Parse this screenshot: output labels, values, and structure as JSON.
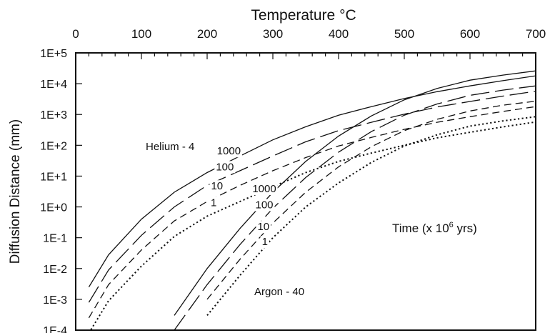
{
  "chart_data": {
    "type": "line",
    "title": "",
    "xlabel": "Temperature °C",
    "ylabel": "Diffusion Distance (mm)",
    "xlim": [
      0,
      700
    ],
    "ylim_log10": [
      -4,
      5
    ],
    "x_scale": "linear",
    "y_scale": "log",
    "x_position": "top",
    "grid": false,
    "x_ticks": [
      "0",
      "100",
      "200",
      "300",
      "400",
      "500",
      "600",
      "700"
    ],
    "y_ticks": [
      "1E+5",
      "1E+4",
      "1E+3",
      "1E+2",
      "1E+1",
      "1E+0",
      "1E-1",
      "1E-2",
      "1E-3",
      "1E-4"
    ],
    "annotations": {
      "helium": "Helium - 4",
      "argon": "Argon - 40",
      "time": "Time (x 10",
      "time_exp": "6",
      "time_unit": " yrs)"
    },
    "series": [
      {
        "group": "He",
        "label": "1000",
        "style": "solid",
        "points": [
          [
            20,
            0.0025
          ],
          [
            50,
            0.028
          ],
          [
            100,
            0.4
          ],
          [
            150,
            3
          ],
          [
            200,
            13
          ],
          [
            250,
            45
          ],
          [
            300,
            150
          ],
          [
            350,
            400
          ],
          [
            400,
            950
          ],
          [
            450,
            1800
          ],
          [
            500,
            3300
          ],
          [
            550,
            5500
          ],
          [
            600,
            8500
          ],
          [
            650,
            12500
          ],
          [
            700,
            18000
          ]
        ]
      },
      {
        "group": "He",
        "label": "100",
        "style": "long-dash",
        "points": [
          [
            20,
            0.0008
          ],
          [
            50,
            0.009
          ],
          [
            100,
            0.12
          ],
          [
            150,
            1
          ],
          [
            200,
            5
          ],
          [
            250,
            15
          ],
          [
            300,
            45
          ],
          [
            350,
            130
          ],
          [
            400,
            300
          ],
          [
            450,
            560
          ],
          [
            500,
            1030
          ],
          [
            550,
            1750
          ],
          [
            600,
            2650
          ],
          [
            650,
            3950
          ],
          [
            700,
            5700
          ]
        ]
      },
      {
        "group": "He",
        "label": "10",
        "style": "dash",
        "points": [
          [
            20,
            0.00025
          ],
          [
            50,
            0.003
          ],
          [
            100,
            0.04
          ],
          [
            150,
            0.35
          ],
          [
            200,
            1.5
          ],
          [
            250,
            5
          ],
          [
            300,
            15
          ],
          [
            350,
            40
          ],
          [
            400,
            95
          ],
          [
            450,
            180
          ],
          [
            500,
            330
          ],
          [
            550,
            560
          ],
          [
            600,
            850
          ],
          [
            650,
            1250
          ],
          [
            700,
            1800
          ]
        ]
      },
      {
        "group": "He",
        "label": "1",
        "style": "dotted",
        "points": [
          [
            20,
            8e-05
          ],
          [
            50,
            0.0009
          ],
          [
            100,
            0.012
          ],
          [
            150,
            0.11
          ],
          [
            200,
            0.5
          ],
          [
            250,
            1.5
          ],
          [
            300,
            4.5
          ],
          [
            350,
            13
          ],
          [
            400,
            30
          ],
          [
            450,
            56
          ],
          [
            500,
            100
          ],
          [
            550,
            175
          ],
          [
            600,
            265
          ],
          [
            650,
            395
          ],
          [
            700,
            570
          ]
        ]
      },
      {
        "group": "Ar",
        "label": "1000",
        "style": "solid",
        "points": [
          [
            150,
            0.0003
          ],
          [
            200,
            0.01
          ],
          [
            250,
            0.2
          ],
          [
            300,
            3
          ],
          [
            350,
            30
          ],
          [
            400,
            200
          ],
          [
            450,
            900
          ],
          [
            500,
            3000
          ],
          [
            550,
            7000
          ],
          [
            600,
            13000
          ],
          [
            650,
            19000
          ],
          [
            700,
            26000
          ]
        ]
      },
      {
        "group": "Ar",
        "label": "100",
        "style": "long-dash",
        "points": [
          [
            150,
            0.0001
          ],
          [
            200,
            0.003
          ],
          [
            250,
            0.06
          ],
          [
            300,
            0.9
          ],
          [
            350,
            9
          ],
          [
            400,
            60
          ],
          [
            450,
            280
          ],
          [
            500,
            950
          ],
          [
            550,
            2200
          ],
          [
            600,
            4200
          ],
          [
            650,
            6200
          ],
          [
            700,
            8500
          ]
        ]
      },
      {
        "group": "Ar",
        "label": "10",
        "style": "dash",
        "points": [
          [
            200,
            0.001
          ],
          [
            250,
            0.02
          ],
          [
            300,
            0.3
          ],
          [
            350,
            3
          ],
          [
            400,
            20
          ],
          [
            450,
            90
          ],
          [
            500,
            300
          ],
          [
            550,
            700
          ],
          [
            600,
            1300
          ],
          [
            650,
            2000
          ],
          [
            700,
            2700
          ]
        ]
      },
      {
        "group": "Ar",
        "label": "1",
        "style": "dotted",
        "points": [
          [
            200,
            0.0003
          ],
          [
            250,
            0.006
          ],
          [
            300,
            0.1
          ],
          [
            350,
            1
          ],
          [
            400,
            6
          ],
          [
            450,
            28
          ],
          [
            500,
            95
          ],
          [
            550,
            220
          ],
          [
            600,
            420
          ],
          [
            650,
            620
          ],
          [
            700,
            850
          ]
        ]
      }
    ]
  }
}
